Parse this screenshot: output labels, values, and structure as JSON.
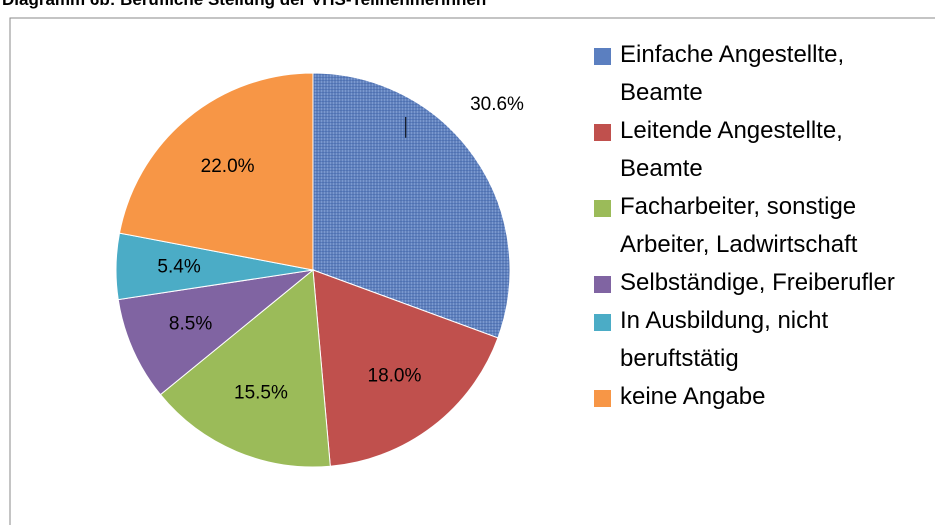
{
  "chart_data": {
    "type": "pie",
    "title": "Diagramm 6b: Berufliche Stellung der VHS-Teilnehmerinnen",
    "categories": [
      "Einfache Angestellte, Beamte",
      "Leitende Angestellte, Beamte",
      "Facharbeiter, sonstige Arbeiter, Ladwirtschaft",
      "Selbständige, Freiberufler",
      "In Ausbildung, nicht beruftstätig",
      "keine Angabe"
    ],
    "values": [
      30.6,
      18.0,
      15.5,
      8.5,
      5.4,
      22.0
    ],
    "value_labels": [
      "30.6%",
      "18.0%",
      "15.5%",
      "8.5%",
      "5.4%",
      "22.0%"
    ],
    "colors": [
      "#5b7fc0",
      "#c0504d",
      "#9bbb59",
      "#8064a2",
      "#4bacc6",
      "#f79646"
    ],
    "legend": "right"
  }
}
